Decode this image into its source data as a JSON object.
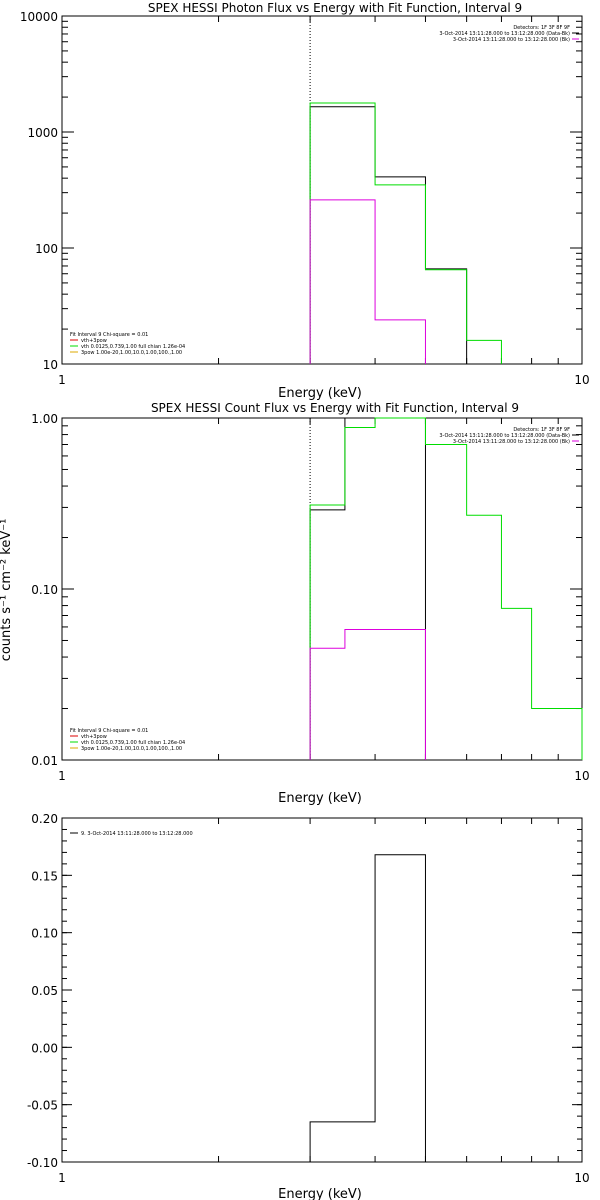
{
  "chart_data": [
    {
      "type": "line",
      "step": true,
      "title": "SPEX HESSI Photon Flux vs Energy with Fit Function, Interval 9",
      "xlabel": "Energy (keV)",
      "ylabel": "",
      "xscale": "log",
      "yscale": "log",
      "xlim": [
        1,
        10
      ],
      "ylim": [
        10,
        10000
      ],
      "x_ticklabels": [
        {
          "v": 1,
          "t": "1"
        },
        {
          "v": 10,
          "t": "10"
        }
      ],
      "y_ticklabels": [
        {
          "v": 10,
          "t": "10"
        },
        {
          "v": 100,
          "t": "100"
        },
        {
          "v": 1000,
          "t": "1000"
        },
        {
          "v": 10000,
          "t": "10000"
        }
      ],
      "vline": 3,
      "series": [
        {
          "color": "#000000",
          "edges": [
            3,
            4,
            5,
            6
          ],
          "values": [
            1650,
            410,
            66
          ]
        },
        {
          "color": "#00dd00",
          "edges": [
            3,
            4,
            5,
            6,
            7
          ],
          "values": [
            1780,
            350,
            65,
            16
          ]
        },
        {
          "color": "#dd00dd",
          "edges": [
            3,
            4,
            5
          ],
          "values": [
            260,
            24
          ]
        }
      ],
      "legend_top_right": [
        {
          "text": "Detectors: 1F 3F 8F 9F",
          "color": null
        },
        {
          "text": "3-Oct-2014 13:11:28.000 to 13:12:28.000 (Data-Bk)",
          "color": "#000000"
        },
        {
          "text": "3-Oct-2014 13:11:28.000 to 13:12:28.000 (Bk)",
          "color": "#dd00dd"
        }
      ],
      "legend_bottom_left": [
        {
          "text": "Fit Interval 9   Chi-square = 0.01",
          "color": null
        },
        {
          "text": "vth+3pow",
          "color": "#dd0000"
        },
        {
          "text": "vth 0.0125,0.739,1.00  full chian 1.26e-04",
          "color": "#00dd00"
        },
        {
          "text": "3pow 1.00e-20,1.00,10.0,1.00,100.,1.00",
          "color": "#ddaa00"
        }
      ]
    },
    {
      "type": "line",
      "step": true,
      "title": "SPEX HESSI Count Flux vs Energy with Fit Function, Interval 9",
      "xlabel": "Energy (keV)",
      "ylabel": "counts s⁻¹ cm⁻² keV⁻¹",
      "xscale": "log",
      "yscale": "log",
      "xlim": [
        1,
        10
      ],
      "ylim": [
        0.01,
        1.0
      ],
      "x_ticklabels": [
        {
          "v": 1,
          "t": "1"
        },
        {
          "v": 10,
          "t": "10"
        }
      ],
      "y_ticklabels": [
        {
          "v": 0.01,
          "t": "0.01"
        },
        {
          "v": 0.1,
          "t": "0.10"
        },
        {
          "v": 1.0,
          "t": "1.00"
        }
      ],
      "vline": 3,
      "series": [
        {
          "color": "#000000",
          "edges": [
            3,
            3.5,
            4,
            5
          ],
          "values": [
            0.29,
            1.0,
            1.0
          ]
        },
        {
          "color": "#00dd00",
          "edges": [
            3,
            3.5,
            4,
            5,
            6,
            7,
            8,
            9,
            10
          ],
          "values": [
            0.31,
            0.88,
            1.02,
            0.7,
            0.27,
            0.077,
            0.02,
            0.02
          ]
        },
        {
          "color": "#dd00dd",
          "edges": [
            3,
            3.5,
            4,
            5
          ],
          "values": [
            0.045,
            0.058,
            0.058
          ]
        }
      ],
      "legend_top_right": [
        {
          "text": "Detectors: 1F 3F 8F 9F",
          "color": null
        },
        {
          "text": "3-Oct-2014 13:11:28.000 to 13:12:28.000 (Data-Bk)",
          "color": "#000000"
        },
        {
          "text": "3-Oct-2014 13:11:28.000 to 13:12:28.000 (Bk)",
          "color": "#dd00dd"
        }
      ],
      "legend_bottom_left": [
        {
          "text": "Fit Interval 9   Chi-square = 0.01",
          "color": null
        },
        {
          "text": "vth+3pow",
          "color": "#dd0000"
        },
        {
          "text": "vth 0.0125,0.739,1.00  full chian 1.26e-04",
          "color": "#00dd00"
        },
        {
          "text": "3pow 1.00e-20,1.00,10.0,1.00,100.,1.00",
          "color": "#ddaa00"
        }
      ]
    },
    {
      "type": "line",
      "step": true,
      "title": "",
      "xlabel": "Energy (keV)",
      "ylabel": "",
      "xscale": "log",
      "yscale": "linear",
      "xlim": [
        1,
        10
      ],
      "ylim": [
        -0.1,
        0.2
      ],
      "x_ticklabels": [
        {
          "v": 1,
          "t": "1"
        },
        {
          "v": 10,
          "t": "10"
        }
      ],
      "y_ticklabels": [
        {
          "v": -0.1,
          "t": "-0.10"
        },
        {
          "v": -0.05,
          "t": "-0.05"
        },
        {
          "v": 0.0,
          "t": "0.00"
        },
        {
          "v": 0.05,
          "t": "0.05"
        },
        {
          "v": 0.1,
          "t": "0.10"
        },
        {
          "v": 0.15,
          "t": "0.15"
        },
        {
          "v": 0.2,
          "t": "0.20"
        }
      ],
      "vline": null,
      "series": [
        {
          "color": "#000000",
          "edges": [
            3,
            4,
            5
          ],
          "values": [
            -0.065,
            0.168
          ]
        }
      ],
      "legend_top_left": [
        {
          "text": "9.  3-Oct-2014 13:11:28.000 to 13:12:28.000",
          "color": "#000000"
        }
      ]
    }
  ]
}
